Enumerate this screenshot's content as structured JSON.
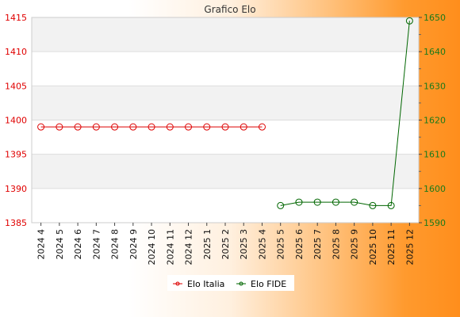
{
  "chart_data": {
    "type": "line",
    "title": "Grafico Elo",
    "categories": [
      "2024 4",
      "2024 5",
      "2024 6",
      "2024 7",
      "2024 8",
      "2024 9",
      "2024 10",
      "2024 11",
      "2024 12",
      "2025 1",
      "2025 2",
      "2025 3",
      "2025 4",
      "2025 5",
      "2025 6",
      "2025 7",
      "2025 8",
      "2025 9",
      "2025 10",
      "2025 11",
      "2025 12"
    ],
    "series": [
      {
        "name": "Elo Italia",
        "axis": "left",
        "color": "#dd0000",
        "values": [
          1399,
          1399,
          1399,
          1399,
          1399,
          1399,
          1399,
          1399,
          1399,
          1399,
          1399,
          1399,
          1399,
          null,
          null,
          null,
          null,
          null,
          null,
          null,
          null
        ]
      },
      {
        "name": "Elo FIDE",
        "axis": "right",
        "color": "#006600",
        "values": [
          null,
          null,
          null,
          null,
          null,
          null,
          null,
          null,
          null,
          null,
          null,
          null,
          null,
          1595,
          1596,
          1596,
          1596,
          1596,
          1595,
          1595,
          1649
        ]
      }
    ],
    "ylim_left": [
      1385,
      1415
    ],
    "yticks_left": [
      1385,
      1390,
      1395,
      1400,
      1405,
      1410,
      1415
    ],
    "ylim_right": [
      1590,
      1650
    ],
    "yticks_right": [
      1590,
      1600,
      1610,
      1620,
      1630,
      1640,
      1650
    ],
    "grid": true,
    "legend_position": "bottom-center"
  }
}
